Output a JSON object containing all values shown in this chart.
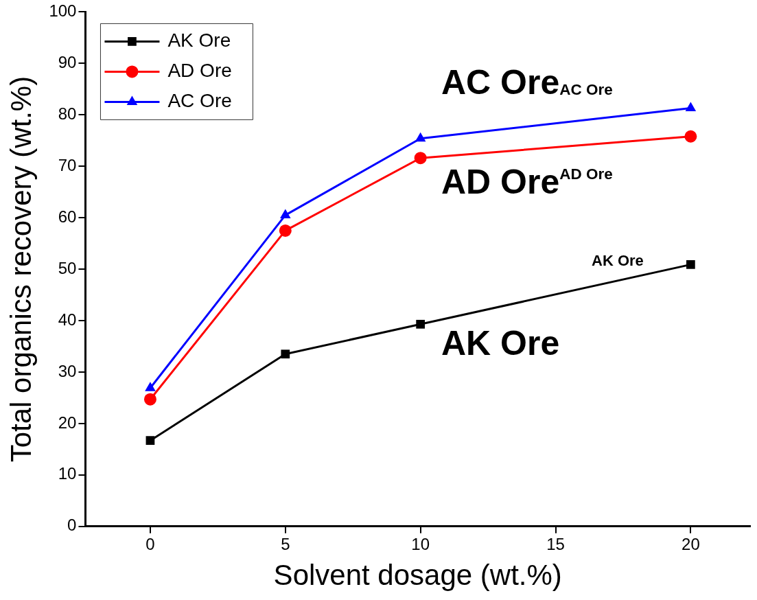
{
  "chart_data": {
    "type": "line",
    "xlabel": "Solvent dosage (wt.%)",
    "ylabel": "Total organics recovery (wt.%)",
    "x": [
      0,
      5,
      10,
      20
    ],
    "series": [
      {
        "name": "AK Ore",
        "color": "#000000",
        "marker": "square",
        "values": [
          16.7,
          33.5,
          39.3,
          50.9
        ]
      },
      {
        "name": "AD Ore",
        "color": "#ff0000",
        "marker": "circle",
        "values": [
          24.7,
          57.5,
          71.6,
          75.8
        ]
      },
      {
        "name": "AC Ore",
        "color": "#0000ff",
        "marker": "triangle",
        "values": [
          26.9,
          60.5,
          75.4,
          81.3
        ]
      }
    ],
    "xlim": [
      -2.4,
      22.2
    ],
    "xticks": [
      0,
      5,
      10,
      15,
      20
    ],
    "ylim": [
      0,
      100
    ],
    "yticks": [
      0,
      10,
      20,
      30,
      40,
      50,
      60,
      70,
      80,
      90,
      100
    ],
    "grid": false,
    "legend": "top left",
    "line_style": "solid",
    "annotations": [
      "AC Ore$_{AC Ore}$",
      "AD Ore$^{AD Ore}$",
      "AK Ore",
      "AK Ore"
    ]
  }
}
